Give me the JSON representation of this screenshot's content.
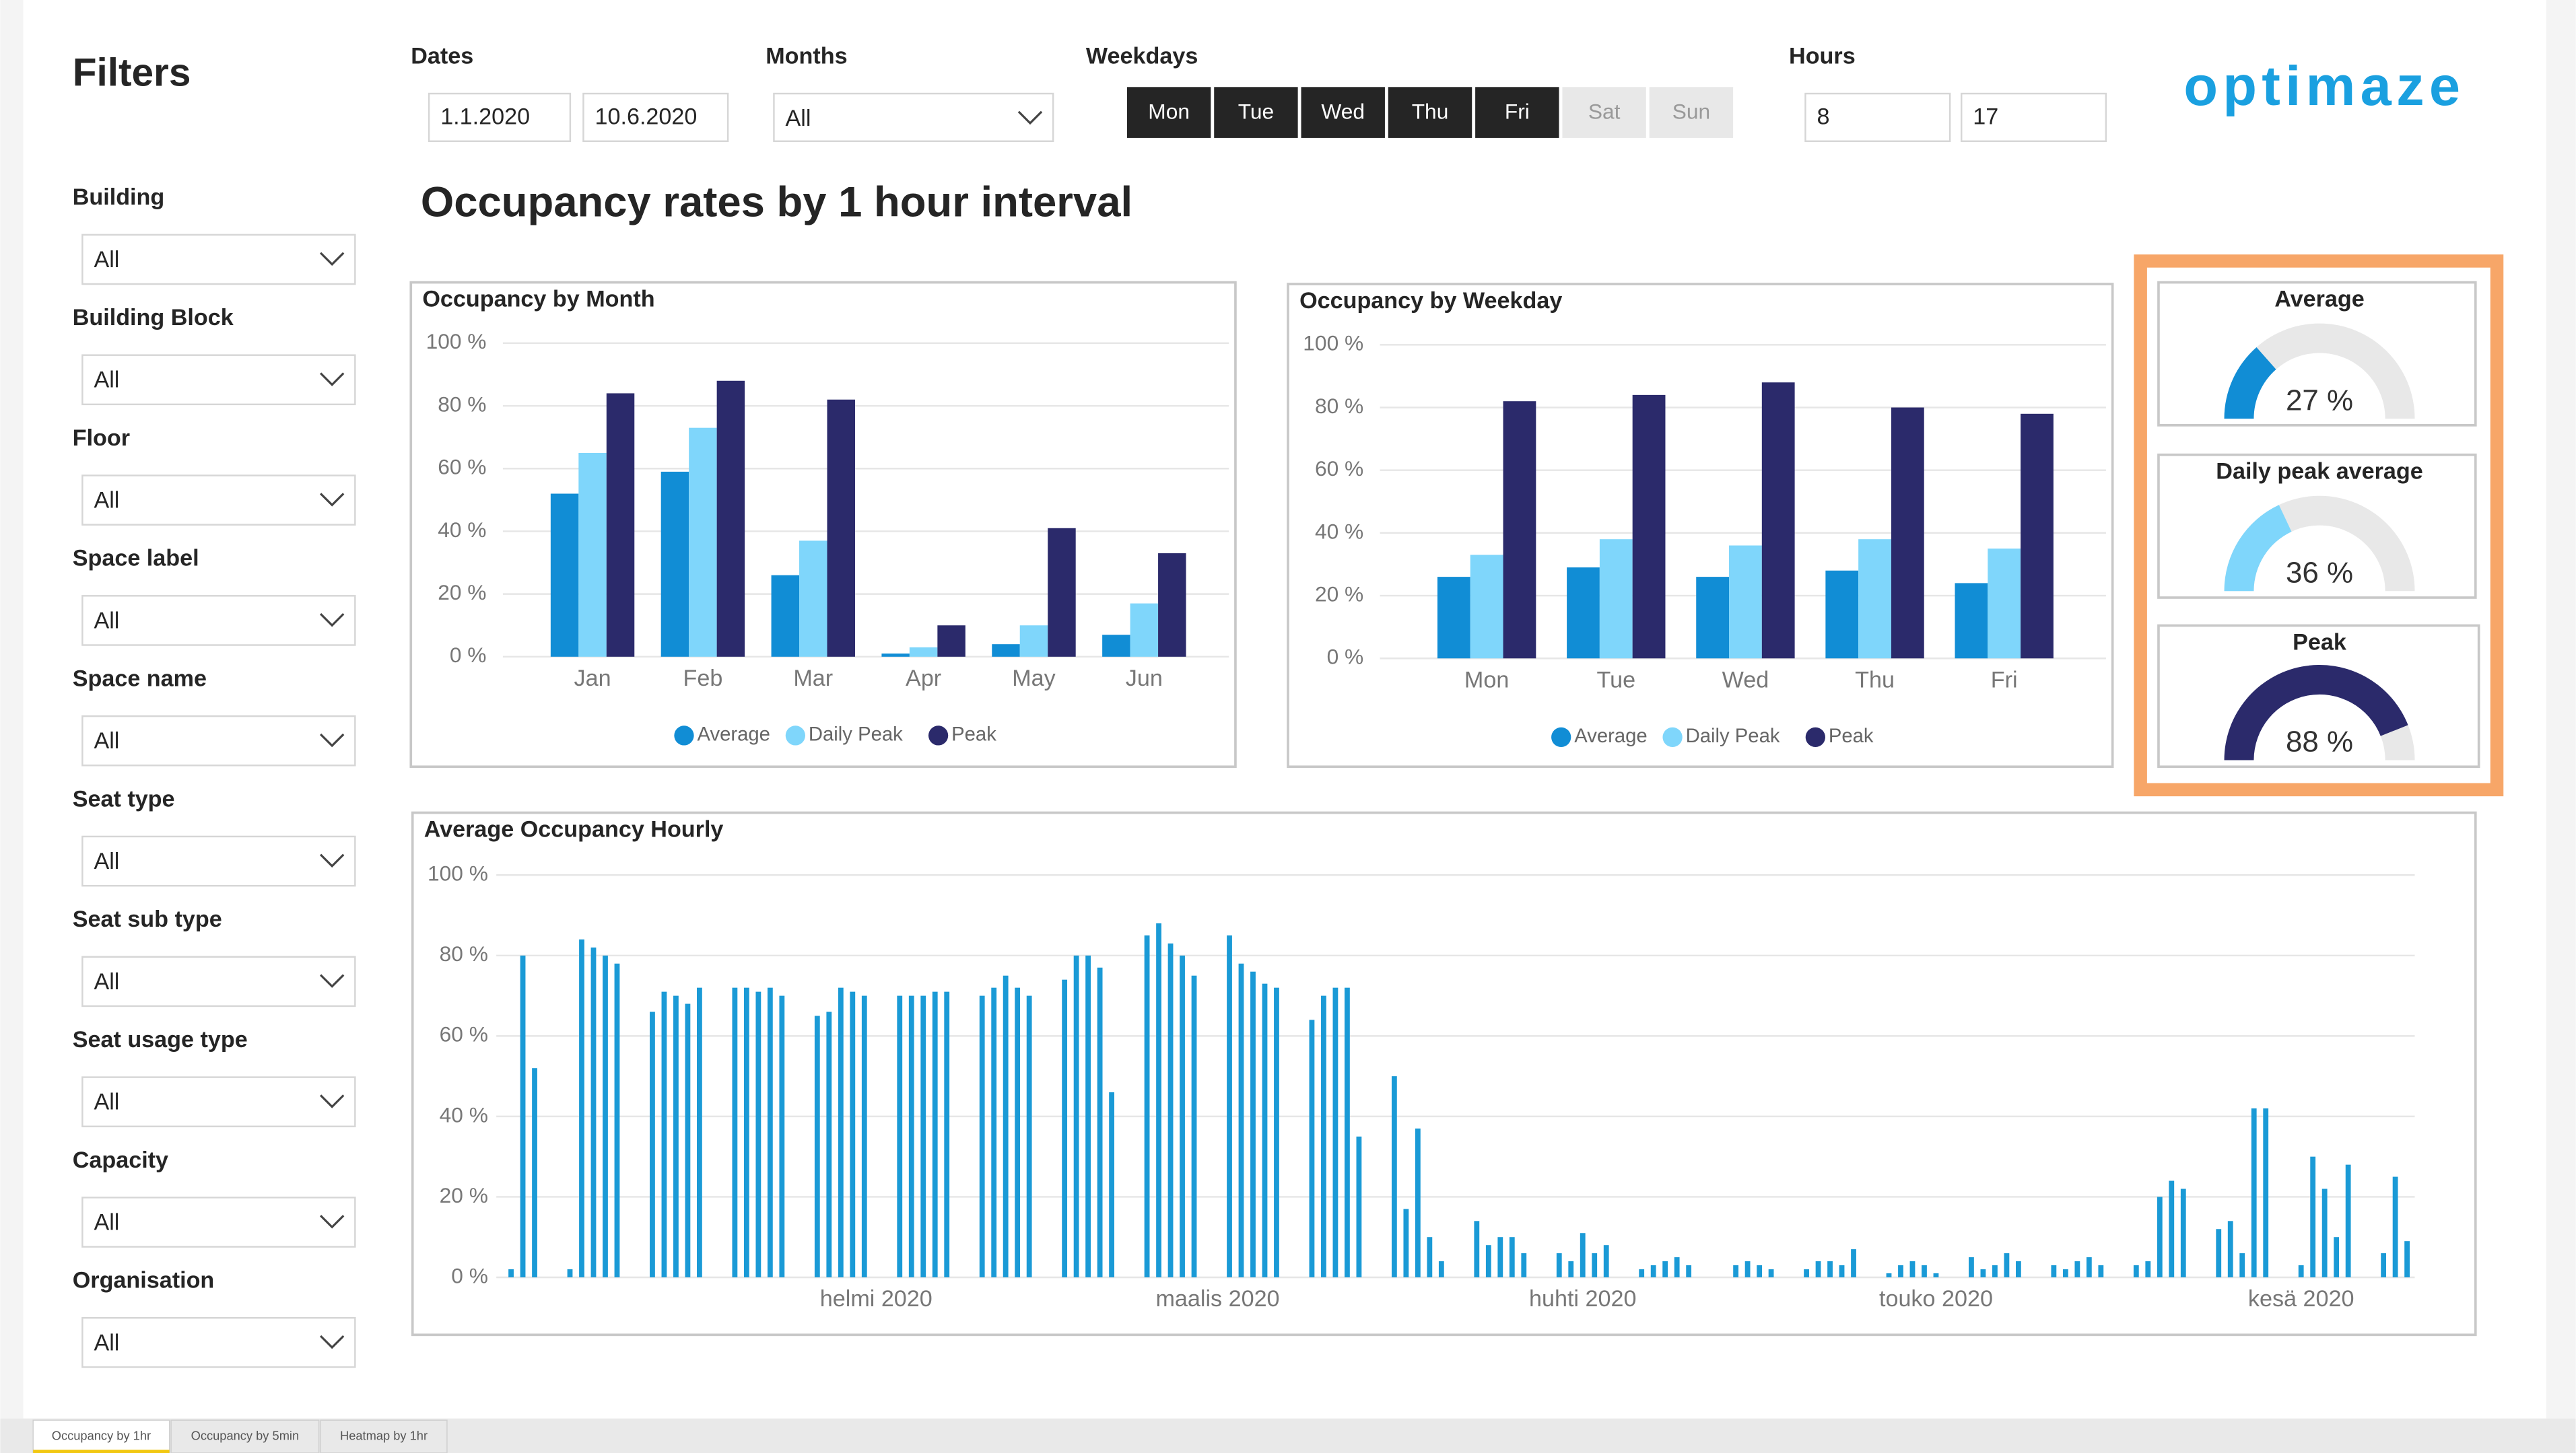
{
  "filters": {
    "title": "Filters",
    "items": [
      {
        "label": "Building",
        "value": "All"
      },
      {
        "label": "Building Block",
        "value": "All"
      },
      {
        "label": "Floor",
        "value": "All"
      },
      {
        "label": "Space label",
        "value": "All"
      },
      {
        "label": "Space name",
        "value": "All"
      },
      {
        "label": "Seat type",
        "value": "All"
      },
      {
        "label": "Seat sub type",
        "value": "All"
      },
      {
        "label": "Seat usage type",
        "value": "All"
      },
      {
        "label": "Capacity",
        "value": "All"
      },
      {
        "label": "Organisation",
        "value": "All"
      }
    ]
  },
  "header": {
    "dates_label": "Dates",
    "dates": [
      "1.1.2020",
      "10.6.2020"
    ],
    "months_label": "Months",
    "months": "All",
    "weekdays_label": "Weekdays",
    "weekdays": [
      {
        "label": "Mon",
        "selected": true
      },
      {
        "label": "Tue",
        "selected": true
      },
      {
        "label": "Wed",
        "selected": true
      },
      {
        "label": "Thu",
        "selected": true
      },
      {
        "label": "Fri",
        "selected": true
      },
      {
        "label": "Sat",
        "selected": false
      },
      {
        "label": "Sun",
        "selected": false
      }
    ],
    "hours_label": "Hours",
    "hours": [
      "8",
      "17"
    ],
    "logo": "optimaze",
    "title": "Occupancy rates by 1 hour interval"
  },
  "chart_data": [
    {
      "type": "bar",
      "title": "Occupancy by Month",
      "categories": [
        "Jan",
        "Feb",
        "Mar",
        "Apr",
        "May",
        "Jun"
      ],
      "series": [
        {
          "name": "Average",
          "color": "#118dd5",
          "values": [
            52,
            59,
            26,
            1,
            4,
            7
          ]
        },
        {
          "name": "Daily Peak",
          "color": "#7fd6fb",
          "values": [
            65,
            73,
            37,
            3,
            10,
            17
          ]
        },
        {
          "name": "Peak",
          "color": "#2b2a6b",
          "values": [
            84,
            88,
            82,
            10,
            41,
            33
          ]
        }
      ],
      "ylim": [
        0,
        100
      ],
      "yticks": [
        {
          "value": 0,
          "label": "0 %"
        },
        {
          "value": 20,
          "label": "20 %"
        },
        {
          "value": 40,
          "label": "40 %"
        },
        {
          "value": 60,
          "label": "60 %"
        },
        {
          "value": 80,
          "label": "80 %"
        },
        {
          "value": 100,
          "label": "100 %"
        }
      ],
      "grid": true,
      "legend": "bottom"
    },
    {
      "type": "bar",
      "title": "Occupancy by Weekday",
      "categories": [
        "Mon",
        "Tue",
        "Wed",
        "Thu",
        "Fri"
      ],
      "series": [
        {
          "name": "Average",
          "color": "#118dd5",
          "values": [
            26,
            29,
            26,
            28,
            24
          ]
        },
        {
          "name": "Daily Peak",
          "color": "#7fd6fb",
          "values": [
            33,
            38,
            36,
            38,
            35
          ]
        },
        {
          "name": "Peak",
          "color": "#2b2a6b",
          "values": [
            82,
            84,
            88,
            80,
            78
          ]
        }
      ],
      "ylim": [
        0,
        100
      ],
      "yticks": [
        {
          "value": 0,
          "label": "0 %"
        },
        {
          "value": 20,
          "label": "20 %"
        },
        {
          "value": 40,
          "label": "40 %"
        },
        {
          "value": 60,
          "label": "60 %"
        },
        {
          "value": 80,
          "label": "80 %"
        },
        {
          "value": 100,
          "label": "100 %"
        }
      ],
      "grid": true,
      "legend": "bottom"
    },
    {
      "type": "gauge",
      "title": "Average",
      "values": [
        27
      ],
      "value_labels": [
        "27 %"
      ],
      "ylim": [
        0,
        100
      ],
      "color": "#118dd5"
    },
    {
      "type": "gauge",
      "title": "Daily peak average",
      "values": [
        36
      ],
      "value_labels": [
        "36 %"
      ],
      "ylim": [
        0,
        100
      ],
      "color": "#7fd6fb"
    },
    {
      "type": "gauge",
      "title": "Peak",
      "values": [
        88
      ],
      "value_labels": [
        "88 %"
      ],
      "ylim": [
        0,
        100
      ],
      "color": "#2b2a6b"
    },
    {
      "type": "bar",
      "title": "Average Occupancy Hourly",
      "color": "#1a9ad6",
      "values": [
        2,
        80,
        52,
        0,
        0,
        2,
        84,
        82,
        80,
        78,
        0,
        0,
        66,
        71,
        70,
        68,
        72,
        0,
        0,
        72,
        72,
        71,
        72,
        70,
        0,
        0,
        65,
        66,
        72,
        71,
        70,
        0,
        0,
        70,
        70,
        70,
        71,
        71,
        0,
        0,
        70,
        72,
        75,
        72,
        70,
        0,
        0,
        74,
        80,
        80,
        77,
        46,
        0,
        0,
        85,
        88,
        83,
        80,
        75,
        0,
        0,
        85,
        78,
        76,
        73,
        72,
        0,
        0,
        64,
        70,
        72,
        72,
        35,
        0,
        0,
        50,
        17,
        37,
        10,
        4,
        0,
        0,
        14,
        8,
        10,
        10,
        6,
        0,
        0,
        6,
        4,
        11,
        6,
        8,
        0,
        0,
        2,
        3,
        4,
        5,
        3,
        0,
        0,
        0,
        3,
        4,
        3,
        2,
        0,
        0,
        2,
        4,
        4,
        3,
        7,
        0,
        0,
        1,
        3,
        4,
        3,
        1,
        0,
        0,
        5,
        2,
        3,
        6,
        4,
        0,
        0,
        3,
        2,
        4,
        5,
        3,
        0,
        0,
        3,
        4,
        20,
        24,
        22,
        0,
        0,
        12,
        14,
        6,
        42,
        42,
        0,
        0,
        3,
        30,
        22,
        10,
        28,
        0,
        0,
        6,
        25,
        9
      ],
      "xlim": [
        -0.5,
        161.5
      ],
      "xticks": [
        {
          "value": 31,
          "label": "helmi 2020"
        },
        {
          "value": 60,
          "label": "maalis 2020"
        },
        {
          "value": 91,
          "label": "huhti 2020"
        },
        {
          "value": 121,
          "label": "touko 2020"
        },
        {
          "value": 152,
          "label": "kesä 2020"
        }
      ],
      "ylim": [
        0,
        100
      ],
      "yticks": [
        {
          "value": 0,
          "label": "0 %"
        },
        {
          "value": 20,
          "label": "20 %"
        },
        {
          "value": 40,
          "label": "40 %"
        },
        {
          "value": 60,
          "label": "60 %"
        },
        {
          "value": 80,
          "label": "80 %"
        },
        {
          "value": 100,
          "label": "100 %"
        }
      ],
      "grid": true
    }
  ],
  "tabs": [
    "Occupancy by 1hr",
    "Occupancy by 5min",
    "Heatmap by 1hr"
  ]
}
